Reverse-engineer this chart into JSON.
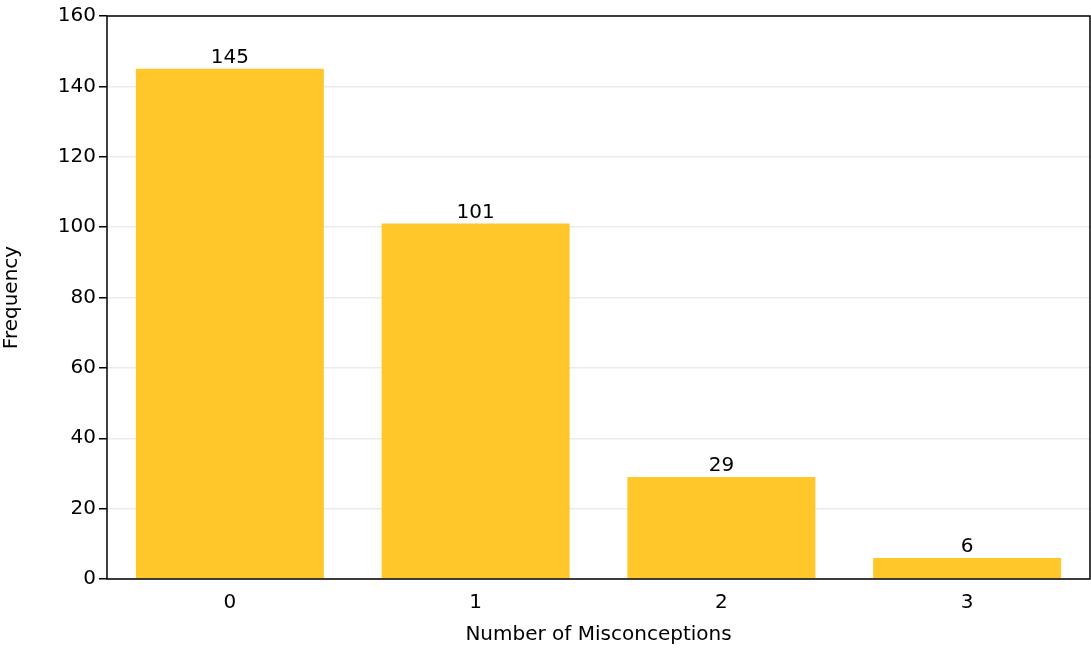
{
  "chart_data": {
    "type": "bar",
    "xlabel": "Number of Misconceptions",
    "ylabel": "Frequency",
    "categories": [
      "0",
      "1",
      "2",
      "3"
    ],
    "values": [
      145,
      101,
      29,
      6
    ],
    "color": "#ffc72a",
    "ylim": [
      0,
      160
    ],
    "yticks": [
      0,
      20,
      40,
      60,
      80,
      100,
      120,
      140,
      160
    ],
    "grid": "y",
    "data_labels": true,
    "legend": false
  }
}
